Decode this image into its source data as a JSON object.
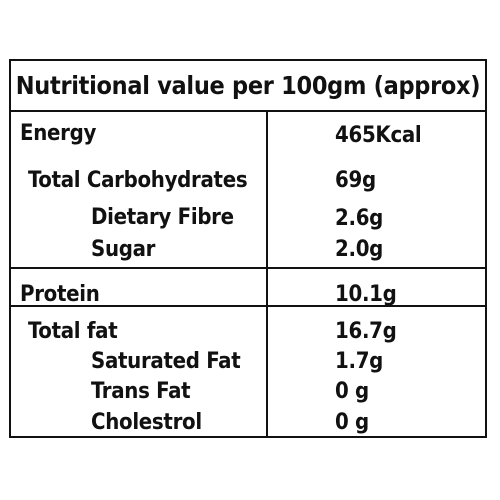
{
  "title": "Nutritional value per 100gm (approx)",
  "rows": [
    {
      "label": "Energy",
      "value": "465Kcal"
    },
    {
      "label": "Total Carbohydrates",
      "value": "69g"
    },
    {
      "label": "Dietary Fibre",
      "value": "2.6g"
    },
    {
      "label": "Sugar",
      "value": "2.0g"
    },
    {
      "label": "Protein",
      "value": "10.1g"
    },
    {
      "label": "Total fat",
      "value": "16.7g"
    },
    {
      "label": "Saturated Fat",
      "value": "1.7g"
    },
    {
      "label": "Trans Fat",
      "value": "0 g"
    },
    {
      "label": "Cholestrol",
      "value": "0 g"
    }
  ]
}
